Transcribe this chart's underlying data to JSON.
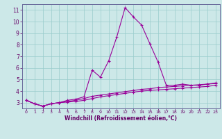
{
  "x": [
    0,
    1,
    2,
    3,
    4,
    5,
    6,
    7,
    8,
    9,
    10,
    11,
    12,
    13,
    14,
    15,
    16,
    17,
    18,
    19,
    20,
    21,
    22,
    23
  ],
  "line1": [
    3.2,
    2.9,
    2.7,
    2.9,
    3.0,
    3.2,
    3.3,
    3.5,
    5.8,
    5.2,
    6.6,
    8.7,
    11.2,
    10.4,
    9.7,
    8.1,
    6.5,
    4.5,
    4.5,
    4.6,
    4.5,
    4.5,
    4.6,
    4.7
  ],
  "line2": [
    3.2,
    2.9,
    2.7,
    2.9,
    3.0,
    3.1,
    3.2,
    3.35,
    3.55,
    3.65,
    3.75,
    3.85,
    3.95,
    4.05,
    4.15,
    4.2,
    4.3,
    4.35,
    4.4,
    4.45,
    4.5,
    4.55,
    4.6,
    4.65
  ],
  "line3": [
    3.2,
    2.9,
    2.7,
    2.9,
    3.0,
    3.05,
    3.1,
    3.2,
    3.35,
    3.5,
    3.6,
    3.7,
    3.8,
    3.9,
    4.0,
    4.05,
    4.1,
    4.15,
    4.2,
    4.25,
    4.3,
    4.35,
    4.4,
    4.5
  ],
  "line_color": "#990099",
  "bg_color": "#cce8e8",
  "grid_color": "#99cccc",
  "xlabel": "Windchill (Refroidissement éolien,°C)",
  "xlabel_color": "#660066",
  "tick_color": "#660066",
  "ylim": [
    2.5,
    11.5
  ],
  "xlim": [
    -0.5,
    23.5
  ],
  "yticks": [
    3,
    4,
    5,
    6,
    7,
    8,
    9,
    10,
    11
  ],
  "xticks": [
    0,
    1,
    2,
    3,
    4,
    5,
    6,
    7,
    8,
    9,
    10,
    11,
    12,
    13,
    14,
    15,
    16,
    17,
    18,
    19,
    20,
    21,
    22,
    23
  ]
}
